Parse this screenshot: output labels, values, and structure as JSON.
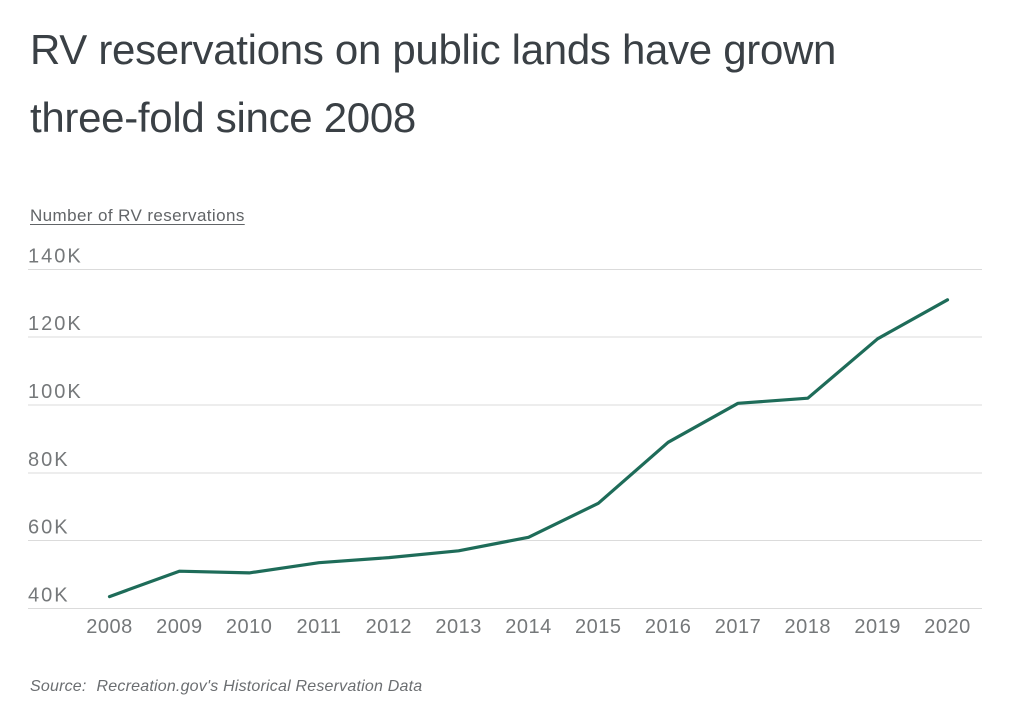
{
  "header": {
    "title_line1": "RV reservations on public lands have grown",
    "title_line2": "three-fold since 2008",
    "title_color": "#3a4045"
  },
  "chart": {
    "axis_label": "Number of RV reservations"
  },
  "chart_data": {
    "type": "line",
    "title": "RV reservations on public lands have grown three-fold since 2008",
    "ylabel": "Number of RV reservations",
    "xlabel": "",
    "x": [
      2008,
      2009,
      2010,
      2011,
      2012,
      2013,
      2014,
      2015,
      2016,
      2017,
      2018,
      2019,
      2020
    ],
    "series": [
      {
        "name": "RV reservations",
        "values": [
          43500,
          51000,
          50500,
          53500,
          55000,
          57000,
          61000,
          71000,
          89000,
          100500,
          102000,
          119500,
          131000
        ]
      }
    ],
    "y_tick_values": [
      40000,
      60000,
      80000,
      100000,
      120000,
      140000
    ],
    "y_tick_labels": [
      "40K",
      "60K",
      "80K",
      "100K",
      "120K",
      "140K"
    ],
    "ylim": [
      40000,
      140000
    ],
    "grid": true,
    "legend": "none",
    "line_color": "#1e6c59"
  },
  "source": {
    "label": "Source:",
    "text": "Recreation.gov's Historical Reservation Data"
  }
}
